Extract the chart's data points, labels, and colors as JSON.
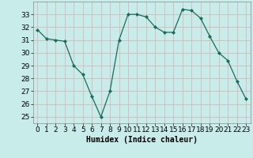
{
  "x": [
    0,
    1,
    2,
    3,
    4,
    5,
    6,
    7,
    8,
    9,
    10,
    11,
    12,
    13,
    14,
    15,
    16,
    17,
    18,
    19,
    20,
    21,
    22,
    23
  ],
  "y": [
    31.8,
    31.1,
    31.0,
    30.9,
    29.0,
    28.3,
    26.6,
    25.0,
    27.0,
    31.0,
    33.0,
    33.0,
    32.8,
    32.0,
    31.6,
    31.6,
    33.4,
    33.3,
    32.7,
    31.3,
    30.0,
    29.4,
    27.8,
    26.4
  ],
  "line_color": "#1a6b5a",
  "marker_color": "#1a6b5a",
  "bg_color": "#c8ecea",
  "grid_color": "#d8b8b8",
  "xlabel": "Humidex (Indice chaleur)",
  "ylim": [
    24.5,
    34.0
  ],
  "xlim": [
    -0.5,
    23.5
  ],
  "yticks": [
    25,
    26,
    27,
    28,
    29,
    30,
    31,
    32,
    33
  ],
  "xticks": [
    0,
    1,
    2,
    3,
    4,
    5,
    6,
    7,
    8,
    9,
    10,
    11,
    12,
    13,
    14,
    15,
    16,
    17,
    18,
    19,
    20,
    21,
    22,
    23
  ],
  "xlabel_fontsize": 7,
  "tick_fontsize": 6.5
}
